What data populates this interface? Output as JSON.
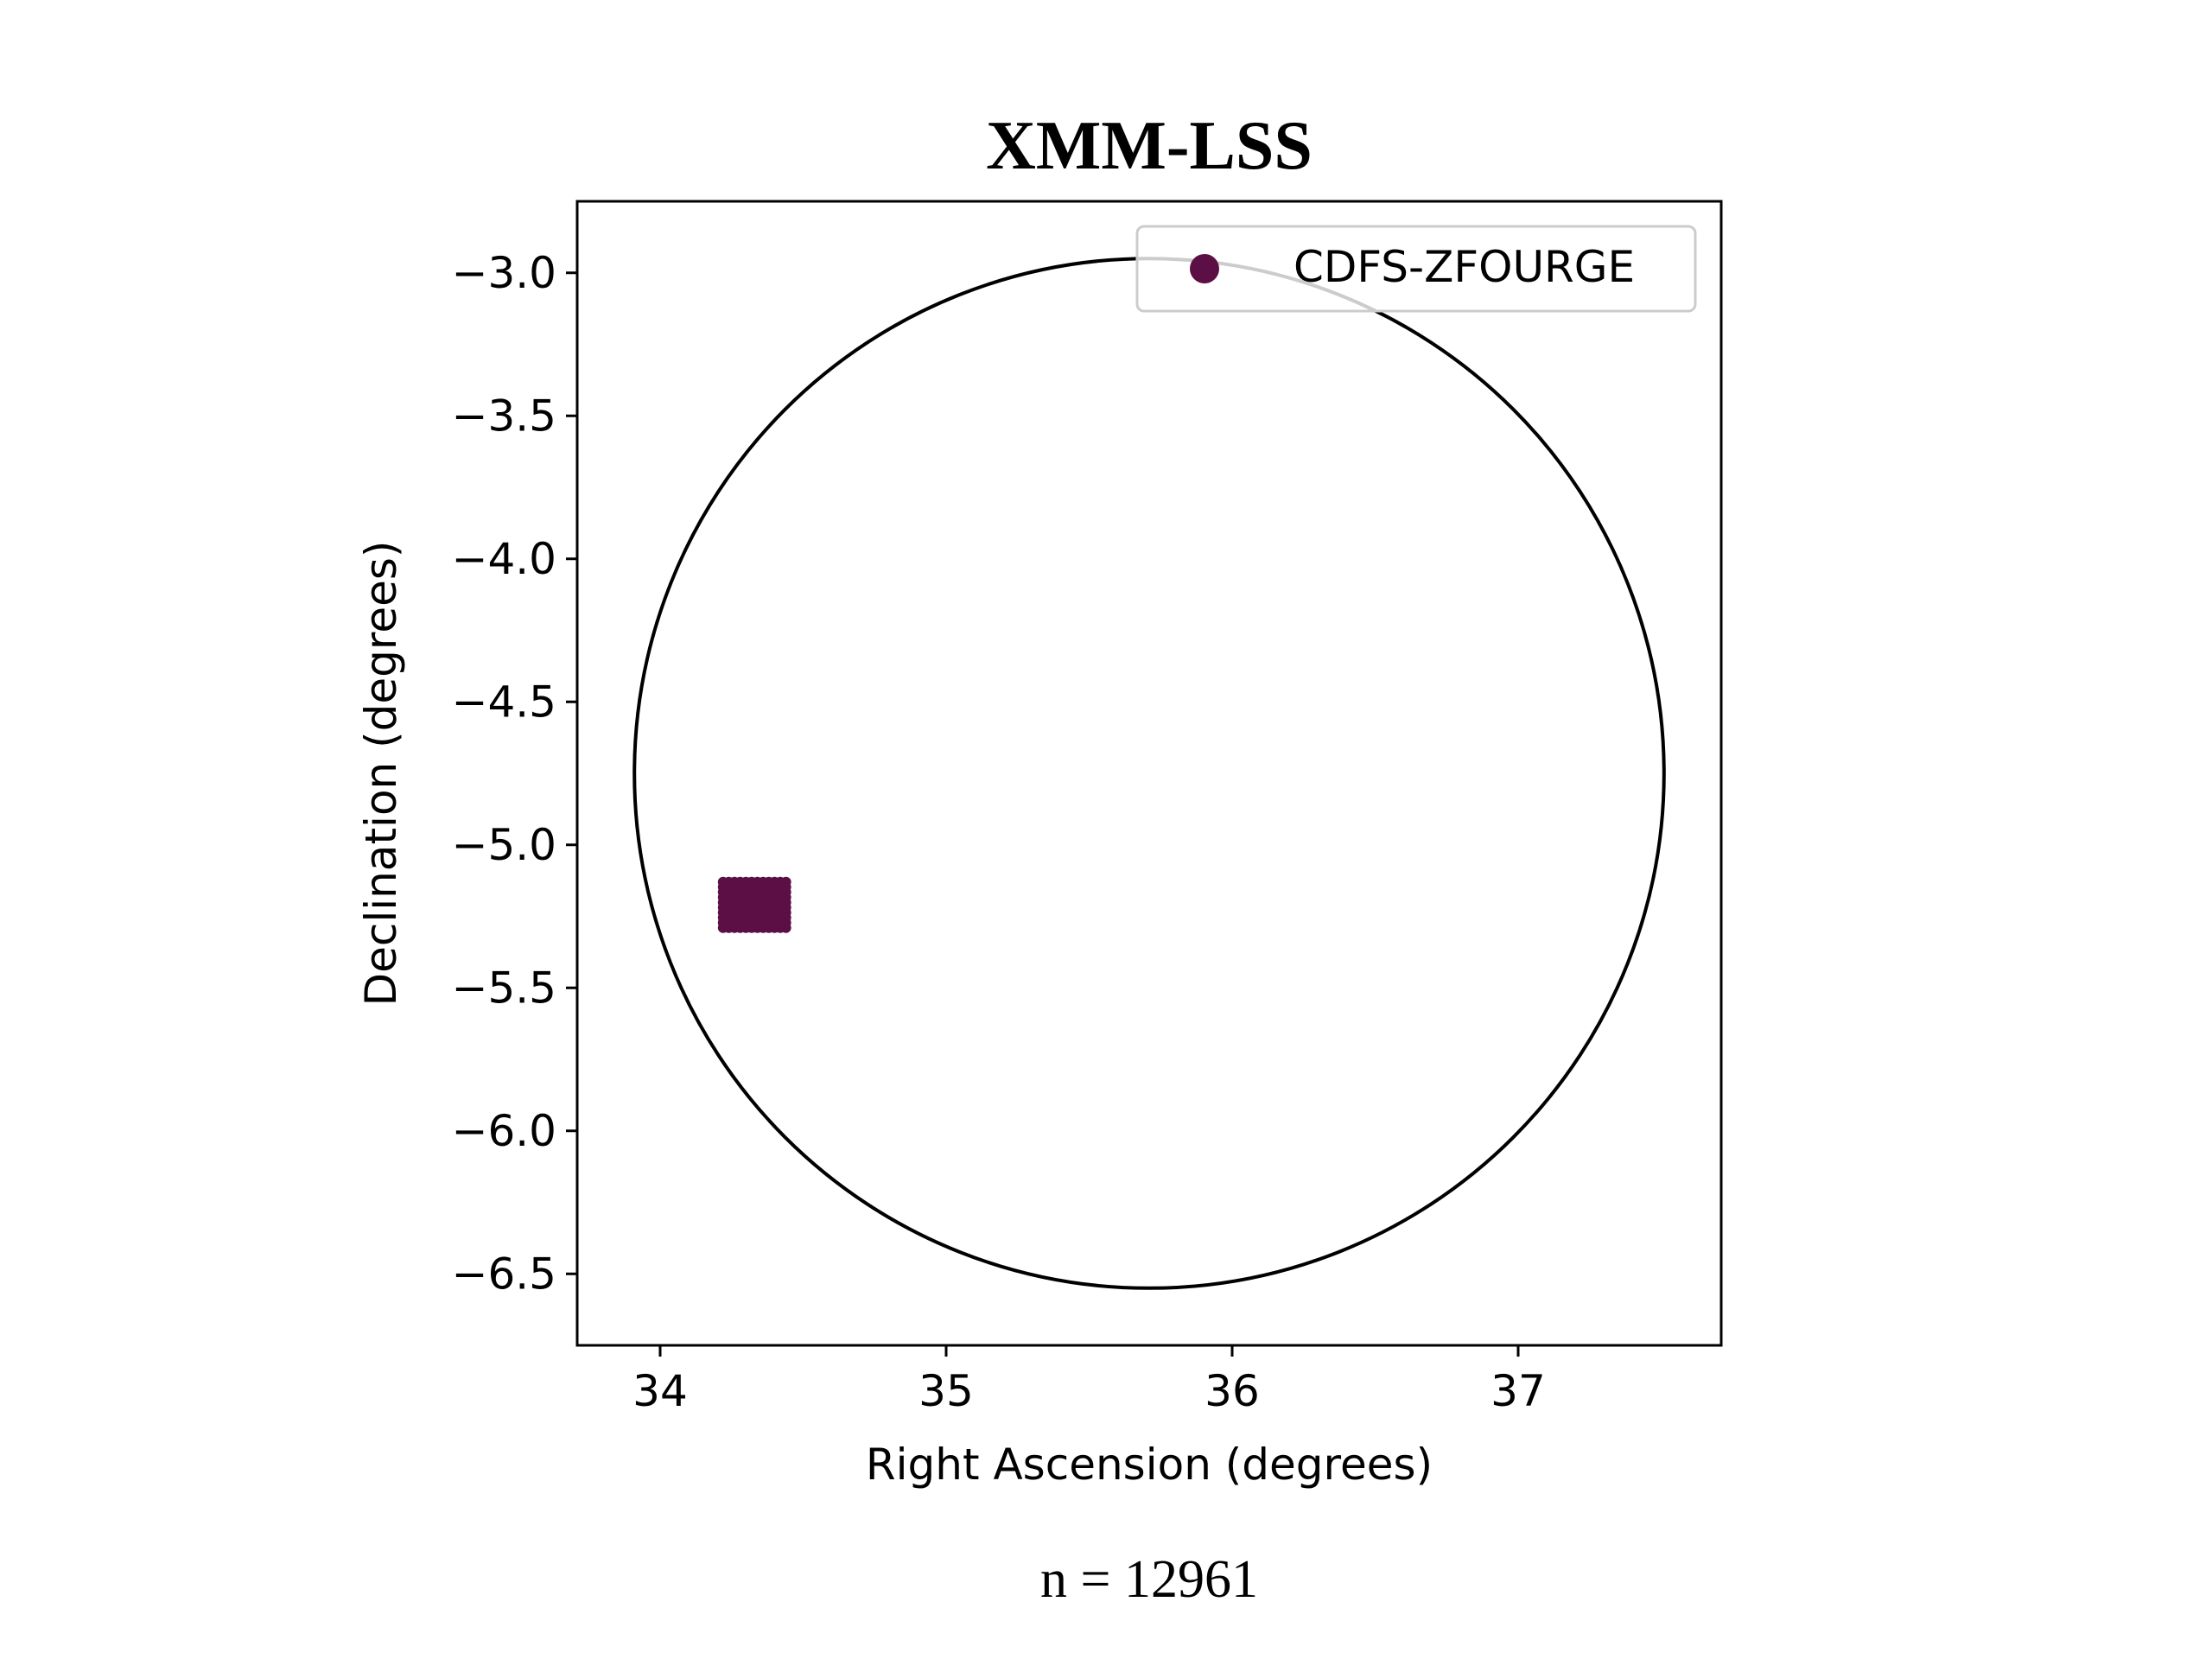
{
  "chart_data": {
    "type": "scatter",
    "title": "XMM-LSS",
    "xlabel": "Right Ascension (degrees)",
    "ylabel": "Declination (degrees)",
    "xlim": [
      33.71,
      37.71
    ],
    "ylim": [
      -6.75,
      -2.75
    ],
    "x_ticks": [
      34,
      35,
      36,
      37
    ],
    "x_tick_labels": [
      "34",
      "35",
      "36",
      "37"
    ],
    "y_ticks": [
      -3.0,
      -3.5,
      -4.0,
      -4.5,
      -5.0,
      -5.5,
      -6.0,
      -6.5
    ],
    "y_tick_labels": [
      "−3.0",
      "−3.5",
      "−4.0",
      "−4.5",
      "−5.0",
      "−5.5",
      "−6.0",
      "−6.5"
    ],
    "grid": false,
    "legend_position": "top-right",
    "series": [
      {
        "name": "CDFS-ZFOURGE",
        "color": "#5c0f45",
        "marker": "circle",
        "region": {
          "ra_min": 34.22,
          "ra_max": 34.44,
          "dec_min": -5.29,
          "dec_max": -5.13
        }
      }
    ],
    "field_circle": {
      "center_ra": 35.71,
      "center_dec": -4.75,
      "radius_deg": 1.8,
      "color": "#000000"
    },
    "annotation": "n = 12961"
  }
}
